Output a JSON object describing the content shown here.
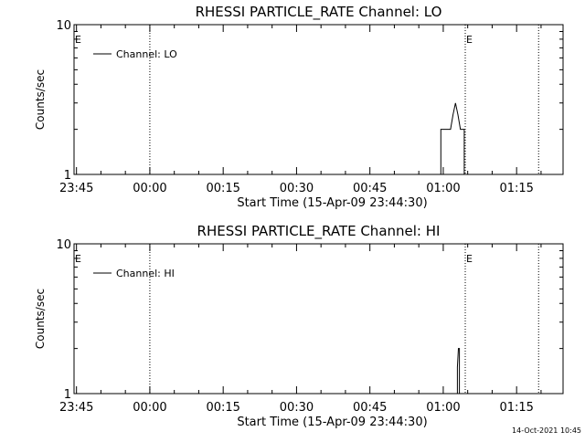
{
  "timestamp": "14-Oct-2021 10:45",
  "chart_data": [
    {
      "type": "line",
      "title": "RHESSI PARTICLE_RATE Channel: LO",
      "xlabel": "Start Time (15-Apr-09 23:44:30)",
      "ylabel": "Counts/sec",
      "y_scale": "log",
      "ylim": [
        1,
        10
      ],
      "y_ticks": [
        {
          "label": "10",
          "value": 10
        },
        {
          "label": "1",
          "value": 1
        }
      ],
      "xlim": [
        -0.5,
        99.5
      ],
      "x_ticks": [
        {
          "label": "23:45",
          "minutes": 0
        },
        {
          "label": "00:00",
          "minutes": 15
        },
        {
          "label": "00:15",
          "minutes": 30
        },
        {
          "label": "00:30",
          "minutes": 45
        },
        {
          "label": "00:45",
          "minutes": 60
        },
        {
          "label": "01:00",
          "minutes": 75
        },
        {
          "label": "01:15",
          "minutes": 90
        }
      ],
      "vlines": [
        {
          "minutes": 15,
          "label": ""
        },
        {
          "minutes": 79.5,
          "label": "E"
        },
        {
          "minutes": 94.5,
          "label": ""
        }
      ],
      "left_marker": "E",
      "legend": "Channel: LO",
      "legend_position": "top-left",
      "series": [
        {
          "name": "Channel: LO",
          "x": [
            74.5,
            74.5,
            75.5,
            76.5,
            77.0,
            77.5,
            78.0,
            78.5,
            79.3,
            79.3
          ],
          "y": [
            1.0,
            2.0,
            2.0,
            2.0,
            2.5,
            3.0,
            2.5,
            2.0,
            2.0,
            1.0
          ]
        }
      ]
    },
    {
      "type": "line",
      "title": "RHESSI PARTICLE_RATE Channel: HI",
      "xlabel": "Start Time (15-Apr-09 23:44:30)",
      "ylabel": "Counts/sec",
      "y_scale": "log",
      "ylim": [
        1,
        10
      ],
      "y_ticks": [
        {
          "label": "10",
          "value": 10
        },
        {
          "label": "1",
          "value": 1
        }
      ],
      "xlim": [
        -0.5,
        99.5
      ],
      "x_ticks": [
        {
          "label": "23:45",
          "minutes": 0
        },
        {
          "label": "00:00",
          "minutes": 15
        },
        {
          "label": "00:15",
          "minutes": 30
        },
        {
          "label": "00:30",
          "minutes": 45
        },
        {
          "label": "00:45",
          "minutes": 60
        },
        {
          "label": "01:00",
          "minutes": 75
        },
        {
          "label": "01:15",
          "minutes": 90
        }
      ],
      "vlines": [
        {
          "minutes": 15,
          "label": ""
        },
        {
          "minutes": 79.5,
          "label": "E"
        },
        {
          "minutes": 94.5,
          "label": ""
        }
      ],
      "left_marker": "E",
      "legend": "Channel: HI",
      "legend_position": "top-left",
      "series": [
        {
          "name": "Channel: HI",
          "x": [
            77.9,
            77.9,
            78.1,
            78.3,
            78.3
          ],
          "y": [
            1.0,
            1.5,
            2.0,
            2.0,
            1.0
          ]
        }
      ]
    }
  ]
}
